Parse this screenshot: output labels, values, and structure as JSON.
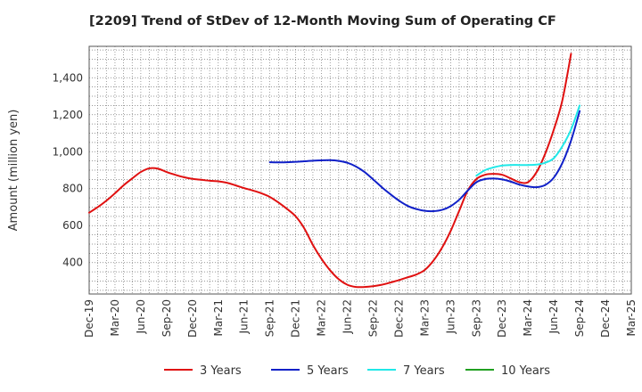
{
  "chart_data": {
    "type": "line",
    "title": "[2209]  Trend of StDev of 12-Month Moving Sum of Operating CF",
    "xlabel": "",
    "ylabel": "Amount (million yen)",
    "ylim": [
      230,
      1570
    ],
    "yticks": [
      400,
      600,
      800,
      1000,
      1200,
      1400
    ],
    "ytick_labels": [
      "400",
      "600",
      "800",
      "1,000",
      "1,200",
      "1,400"
    ],
    "x_range": [
      "2019-12",
      "2025-03"
    ],
    "xtick_labels": [
      "Dec-19",
      "Mar-20",
      "Jun-20",
      "Sep-20",
      "Dec-20",
      "Mar-21",
      "Jun-21",
      "Sep-21",
      "Dec-21",
      "Mar-22",
      "Jun-22",
      "Sep-22",
      "Dec-22",
      "Mar-23",
      "Jun-23",
      "Sep-23",
      "Dec-23",
      "Mar-24",
      "Jun-24",
      "Sep-24",
      "Dec-24",
      "Mar-25"
    ],
    "grid": true,
    "legend_position": "bottom",
    "series": [
      {
        "name": "3 Years",
        "color": "#e01010",
        "x": [
          "2019-12",
          "2020-01",
          "2020-02",
          "2020-03",
          "2020-04",
          "2020-05",
          "2020-06",
          "2020-07",
          "2020-08",
          "2020-09",
          "2020-10",
          "2020-11",
          "2020-12",
          "2021-01",
          "2021-02",
          "2021-03",
          "2021-04",
          "2021-05",
          "2021-06",
          "2021-07",
          "2021-08",
          "2021-09",
          "2021-10",
          "2021-11",
          "2021-12",
          "2022-01",
          "2022-02",
          "2022-03",
          "2022-04",
          "2022-05",
          "2022-06",
          "2022-07",
          "2022-08",
          "2022-09",
          "2022-10",
          "2022-11",
          "2022-12",
          "2023-01",
          "2023-02",
          "2023-03",
          "2023-04",
          "2023-05",
          "2023-06",
          "2023-07",
          "2023-08",
          "2023-09",
          "2023-10",
          "2023-11",
          "2023-12",
          "2024-01",
          "2024-02",
          "2024-03",
          "2024-04",
          "2024-05",
          "2024-06",
          "2024-07",
          "2024-08",
          "2024-09"
        ],
        "values": [
          670,
          700,
          735,
          775,
          818,
          855,
          890,
          910,
          908,
          890,
          875,
          862,
          853,
          848,
          843,
          840,
          832,
          818,
          803,
          790,
          775,
          755,
          725,
          690,
          650,
          585,
          495,
          420,
          358,
          310,
          280,
          268,
          268,
          272,
          280,
          292,
          305,
          320,
          335,
          360,
          410,
          480,
          570,
          680,
          790,
          852,
          875,
          880,
          875,
          855,
          835,
          835,
          890,
          990,
          1120,
          1280,
          1530,
          null
        ]
      },
      {
        "name": "5 Years",
        "color": "#1020c8",
        "x": [
          "2021-09",
          "2021-10",
          "2021-11",
          "2021-12",
          "2022-01",
          "2022-02",
          "2022-03",
          "2022-04",
          "2022-05",
          "2022-06",
          "2022-07",
          "2022-08",
          "2022-09",
          "2022-10",
          "2022-11",
          "2022-12",
          "2023-01",
          "2023-02",
          "2023-03",
          "2023-04",
          "2023-05",
          "2023-06",
          "2023-07",
          "2023-08",
          "2023-09",
          "2023-10",
          "2023-11",
          "2023-12",
          "2024-01",
          "2024-02",
          "2024-03",
          "2024-04",
          "2024-05",
          "2024-06",
          "2024-07",
          "2024-08",
          "2024-09"
        ],
        "values": [
          943,
          942,
          943,
          945,
          948,
          951,
          953,
          954,
          950,
          940,
          920,
          890,
          850,
          808,
          770,
          735,
          707,
          690,
          680,
          678,
          685,
          705,
          740,
          790,
          835,
          852,
          855,
          850,
          838,
          822,
          812,
          808,
          820,
          860,
          940,
          1060,
          1220
        ]
      },
      {
        "name": "7 Years",
        "color": "#20e8e8",
        "x": [
          "2023-09",
          "2023-10",
          "2023-11",
          "2023-12",
          "2024-01",
          "2024-02",
          "2024-03",
          "2024-04",
          "2024-05",
          "2024-06",
          "2024-07",
          "2024-08",
          "2024-09"
        ],
        "values": [
          870,
          900,
          915,
          925,
          928,
          928,
          928,
          930,
          940,
          965,
          1030,
          1120,
          1250
        ]
      },
      {
        "name": "10 Years",
        "color": "#20a020",
        "x": [],
        "values": []
      }
    ]
  }
}
